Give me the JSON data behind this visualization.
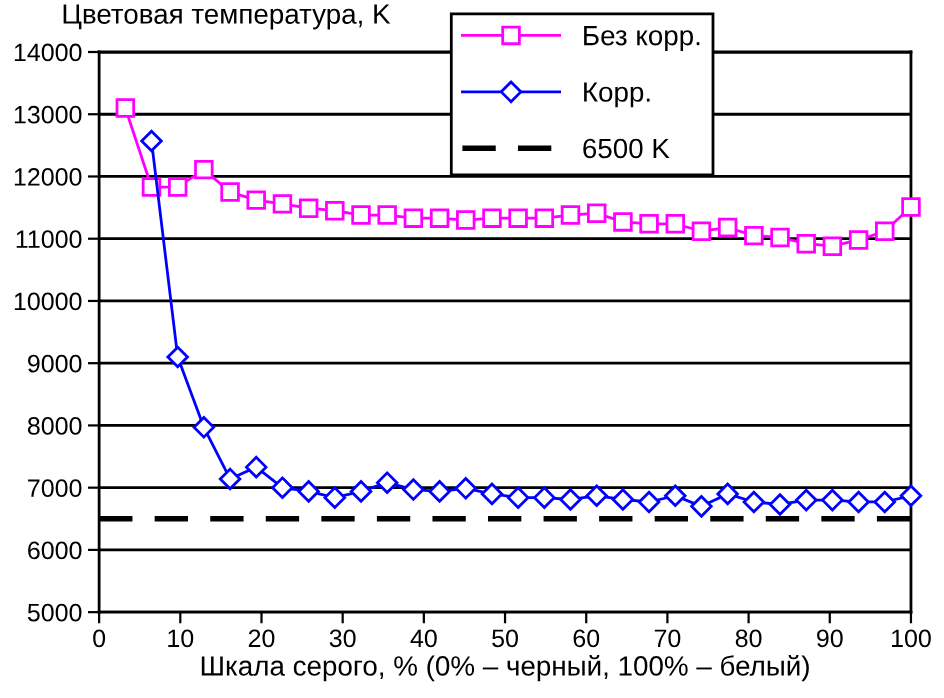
{
  "chart_data": {
    "type": "line",
    "ylabel": "Цветовая температура, K",
    "xlabel": "Шкала серого, % (0% – черный, 100% – белый)",
    "x": [
      3.23,
      6.45,
      9.68,
      12.9,
      16.13,
      19.35,
      22.58,
      25.81,
      29.03,
      32.26,
      35.48,
      38.71,
      41.94,
      45.16,
      48.39,
      51.61,
      54.84,
      58.06,
      61.29,
      64.52,
      67.74,
      70.97,
      74.19,
      77.42,
      80.65,
      83.87,
      87.1,
      90.32,
      93.55,
      96.77,
      100
    ],
    "series": [
      {
        "name": "Без корр.",
        "color": "#ff00ff",
        "marker": "square",
        "values": [
          13100,
          11830,
          11830,
          12110,
          11750,
          11620,
          11560,
          11490,
          11450,
          11380,
          11380,
          11330,
          11330,
          11300,
          11330,
          11330,
          11330,
          11380,
          11410,
          11270,
          11240,
          11240,
          11120,
          11180,
          11050,
          11020,
          10920,
          10880,
          10980,
          11120,
          11510
        ]
      },
      {
        "name": "Корр.",
        "color": "#0000ff",
        "marker": "diamond",
        "values": [
          null,
          12570,
          9100,
          7970,
          7140,
          7330,
          7000,
          6940,
          6840,
          6940,
          7080,
          6970,
          6940,
          6990,
          6900,
          6840,
          6840,
          6810,
          6870,
          6810,
          6770,
          6870,
          6700,
          6900,
          6770,
          6730,
          6800,
          6800,
          6770,
          6770,
          6870
        ]
      }
    ],
    "ref_lines": [
      {
        "axis": "y",
        "value": 6500,
        "label": "6500 K",
        "color": "#000000",
        "line_style": "dashed"
      }
    ],
    "xlim": [
      0,
      100
    ],
    "xticks": [
      0,
      10,
      20,
      30,
      40,
      50,
      60,
      70,
      80,
      90,
      100
    ],
    "ylim": [
      5000,
      14000
    ],
    "yticks": [
      5000,
      6000,
      7000,
      8000,
      9000,
      10000,
      11000,
      12000,
      13000,
      14000
    ],
    "grid": "y",
    "legend": "top right",
    "line_style": "solid"
  }
}
